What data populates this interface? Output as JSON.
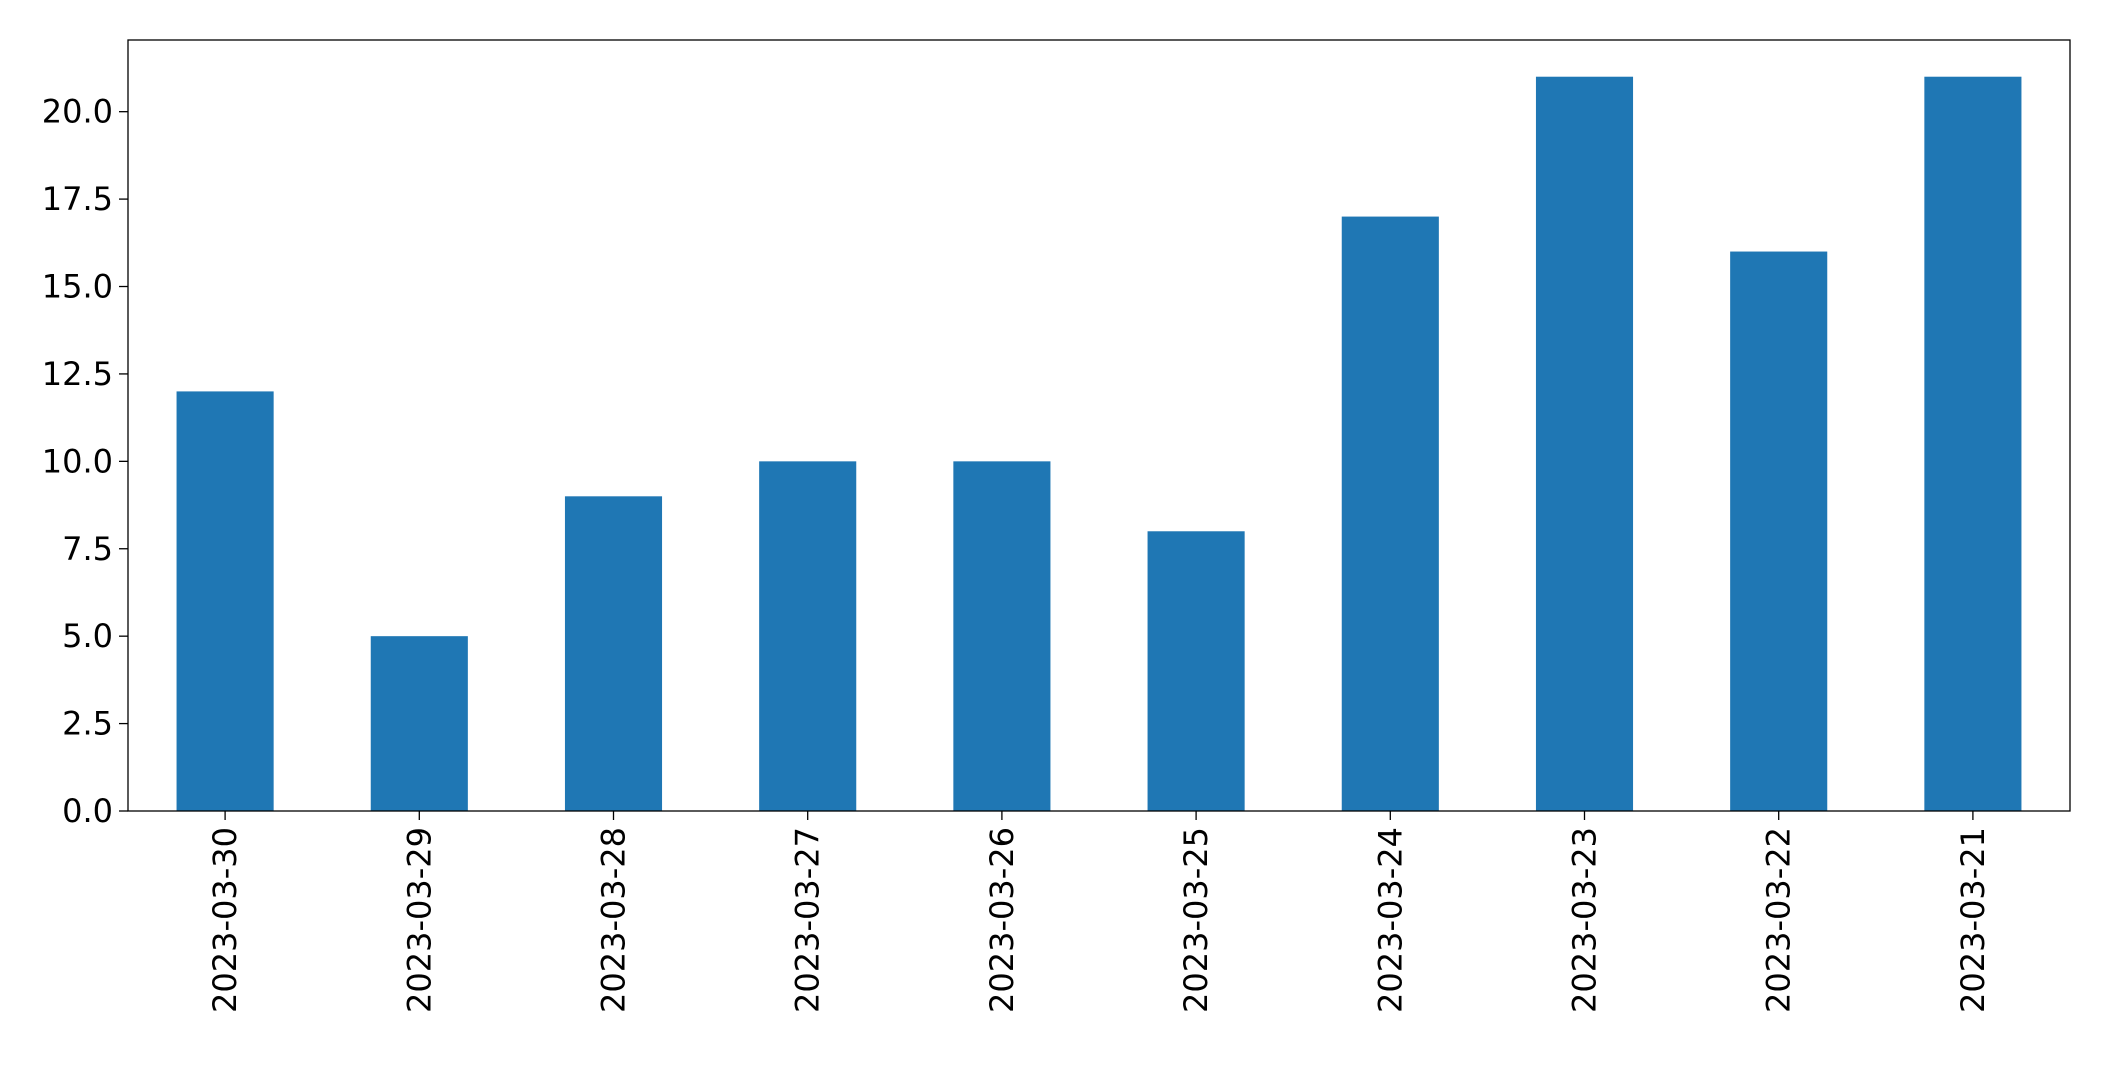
{
  "colors": {
    "bar": "#1f77b4",
    "background": "#ffffff",
    "axis": "#000000"
  },
  "chart_data": {
    "type": "bar",
    "categories": [
      "2023-03-30",
      "2023-03-29",
      "2023-03-28",
      "2023-03-27",
      "2023-03-26",
      "2023-03-25",
      "2023-03-24",
      "2023-03-23",
      "2023-03-22",
      "2023-03-21"
    ],
    "values": [
      12,
      5,
      9,
      10,
      10,
      8,
      17,
      21,
      16,
      21
    ],
    "title": "",
    "xlabel": "",
    "ylabel": "",
    "ylim": [
      0,
      22.05
    ],
    "yticks": [
      0,
      2.5,
      5,
      7.5,
      10,
      12.5,
      15,
      17.5,
      20
    ],
    "ytick_labels": [
      "0.0",
      "2.5",
      "5.0",
      "7.5",
      "10.0",
      "12.5",
      "15.0",
      "17.5",
      "20.0"
    ],
    "x_tick_rotation": "vertical",
    "grid": false,
    "legend": "none"
  }
}
